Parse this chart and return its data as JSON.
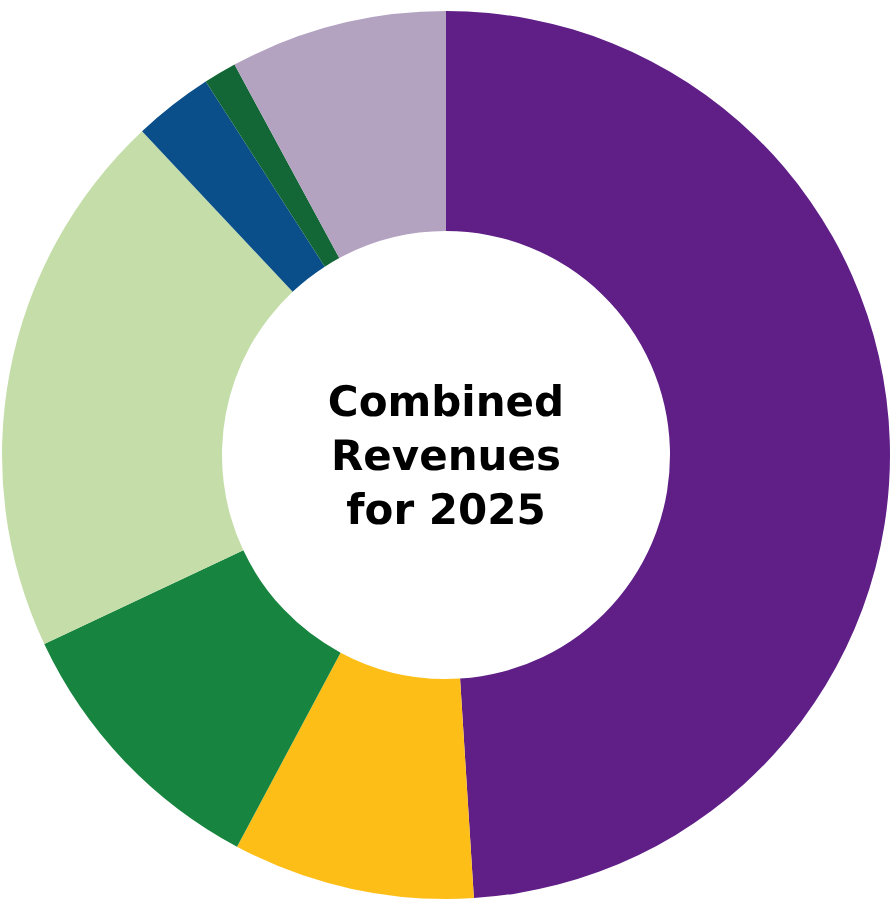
{
  "chart_data": {
    "type": "donut",
    "title": "Combined Revenues for 2025",
    "categories": [
      null,
      null,
      null,
      null,
      null,
      null,
      null
    ],
    "values": [
      49,
      8.8,
      10.2,
      20,
      2.9,
      1.2,
      7.9
    ],
    "colors": [
      "#5f1f87",
      "#fdbf17",
      "#17853f",
      "#c5dea9",
      "#0a4f8a",
      "#136635",
      "#b3a3c1"
    ]
  }
}
